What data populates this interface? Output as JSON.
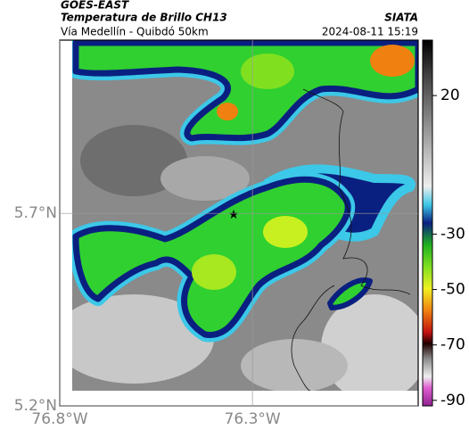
{
  "header": {
    "satellite": "GOES-EAST",
    "title": "Temperatura de Brillo CH13",
    "source": "SIATA",
    "subtitle": "Vía Medellín - Quibdó 50km",
    "timestamp": "2024-08-11 15:19"
  },
  "map": {
    "xlim": [
      -76.8,
      -75.87
    ],
    "ylim": [
      5.2,
      6.15
    ],
    "xticks": [
      {
        "value": -76.8,
        "label": "76.8°W"
      },
      {
        "value": -76.3,
        "label": "76.3°W"
      }
    ],
    "yticks": [
      {
        "value": 5.7,
        "label": "5.7°N"
      },
      {
        "value": 5.2,
        "label": "5.2°N"
      }
    ]
  },
  "colorbar": {
    "lim": [
      -92,
      40
    ],
    "ticks": [
      20,
      -30,
      -50,
      -70,
      -90
    ]
  }
}
